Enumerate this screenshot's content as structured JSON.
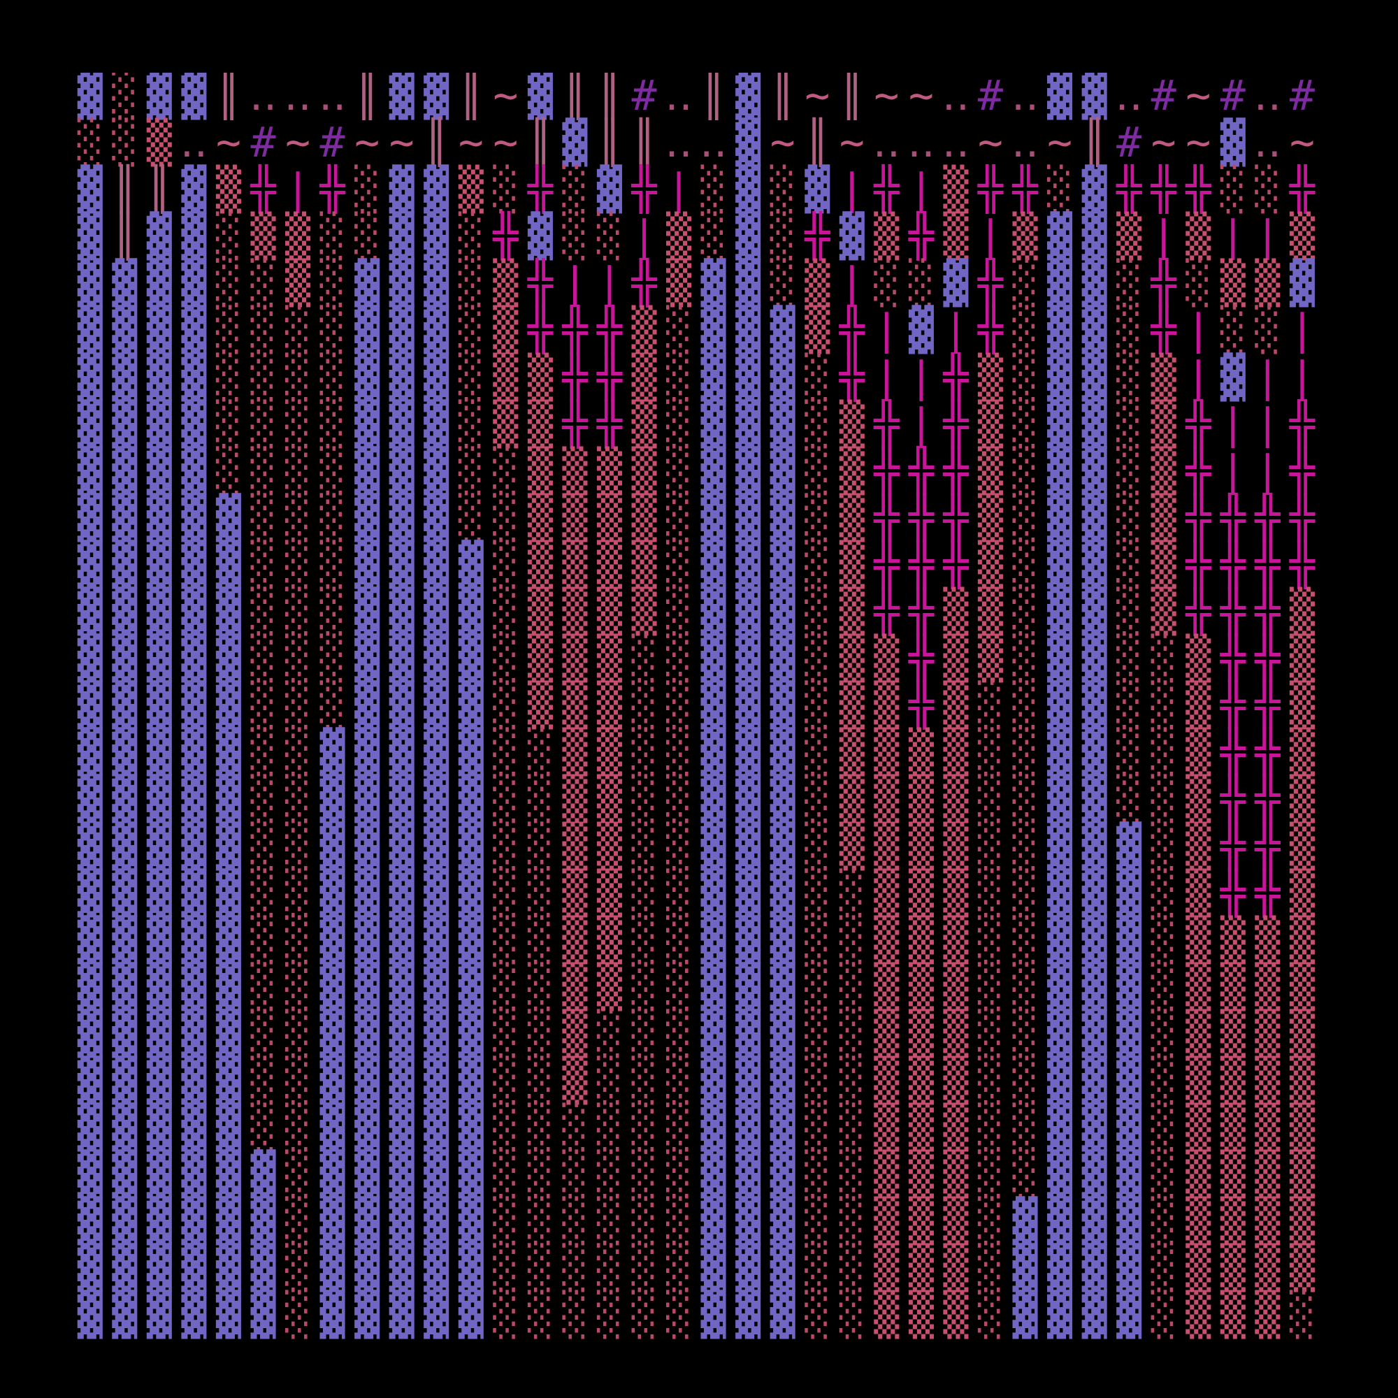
{
  "art": {
    "rows": [
      "▓░▓▓║‥‥‥║▓▓║~▓║║#‥║▓║~║~~‥#‥▓▓‥#~#‥#",
      "░░▒‥~#~#~~║~~║▓║║‥‥▓~║~‥‥‥~‥~║#~~▓‥~",
      "▓║║▓▒╬|╬░▓▓▒░╬░▓╬|░▓░▓|╬|▒╬╬░▓╬╬╬░░╬",
      "▓║▓▓░▒▒░░▓▓░╬▓░░|▒░▓░╬▓▒╬▒|▒▓▓▒|▒||▒",
      "▓▓▓▓░░▒░▓▓▓░▒╬||╬▒▓▓░▒|░░▓╬░▓▓░╬░▒▒▓",
      "▓▓▓▓░░░░▓▓▓░▒╬╬╬▒░▓▓▓▒╬|▓|╬░▓▓░╬|░░|",
      "▓▓▓▓░░░░▓▓▓░▒▒╬╬▒░▓▓▓░╬||╬▒░▓▓░▒|▓||",
      "▓▓▓▓░░░░▓▓▓░▒▒╬╬▒░▓▓▓░▒╬|╬▒░▓▓░▒╬||╬",
      "▓▓▓▓░░░░▓▓▓░░▒▒▒▒░▓▓▓░▒╬╬╬▒░▓▓░▒╬||╬",
      "▓▓▓▓▓░░░▓▓▓░░▒▒▒▒░▓▓▓░▒╬╬╬▒░▓▓░▒╬╬╬╬",
      "▓▓▓▓▓░░░▓▓▓▓░▒▒▒▒░▓▓▓░▒╬╬╬▒░▓▓░▒╬╬╬╬",
      "▓▓▓▓▓░░░▓▓▓▓░▒▒▒▒░▓▓▓░▒╬╬▒▒░▓▓░▒╬╬╬▒",
      "▓▓▓▓▓░░░▓▓▓▓░▒▒▒░░▓▓▓░▒▒╬▒▒░▓▓░░▒╬╬▒",
      "▓▓▓▓▓░░░▓▓▓▓░▒▒▒░░▓▓▓░▒▒╬▒░░▓▓░░▒╬╬▒",
      "▓▓▓▓▓░░▓▓▓▓▓░░▒▒░░▓▓▓░▒▒▒▒░░▓▓░░▒╬╬▒",
      "▓▓▓▓▓░░▓▓▓▓▓░░▒▒░░▓▓▓░▒▒▒▒░░▓▓░░▒╬╬▒",
      "▓▓▓▓▓░░▓▓▓▓▓░░▒▒░░▓▓▓░▒▒▒▒░░▓▓▓░▒╬╬▒",
      "▓▓▓▓▓░░▓▓▓▓▓░░▒▒░░▓▓▓░░▒▒▒░░▓▓▓░▒╬╬▒",
      "▓▓▓▓▓░░▓▓▓▓▓░░▒▒░░▓▓▓░░▒▒▒░░▓▓▓░▒▒▒▒",
      "▓▓▓▓▓░░▓▓▓▓▓░░▒▒░░▓▓▓░░▒▒▒░░▓▓▓░▒▒▒▒",
      "▓▓▓▓▓░░▓▓▓▓▓░░▒░░░▓▓▓░░▒▒▒░░▓▓▓░▒▒▒▒",
      "▓▓▓▓▓░░▓▓▓▓▓░░▒░░░▓▓▓░░▒▒▒░░▓▓▓░▒▒▒▒",
      "▓▓▓▓▓░░▓▓▓▓▓░░░░░░▓▓▓░░▒▒▒░░▓▓▓░▒▒▒▒",
      "▓▓▓▓▓▓░▓▓▓▓▓░░░░░░▓▓▓░░▒▒▒░░▓▓▓░▒▒▒▒",
      "▓▓▓▓▓▓░▓▓▓▓▓░░░░░░▓▓▓░░▒▒▒░▓▓▓▓░▒▒▒▒",
      "▓▓▓▓▓▓░▓▓▓▓▓░░░░░░▓▓▓░░▒▒▒░▓▓▓▓░▒▒▒▒",
      "▓▓▓▓▓▓░▓▓▓▓▓░░░░░░▓▓▓░░▒▒▒░▓▓▓▓░▒▒▒░"
    ]
  }
}
